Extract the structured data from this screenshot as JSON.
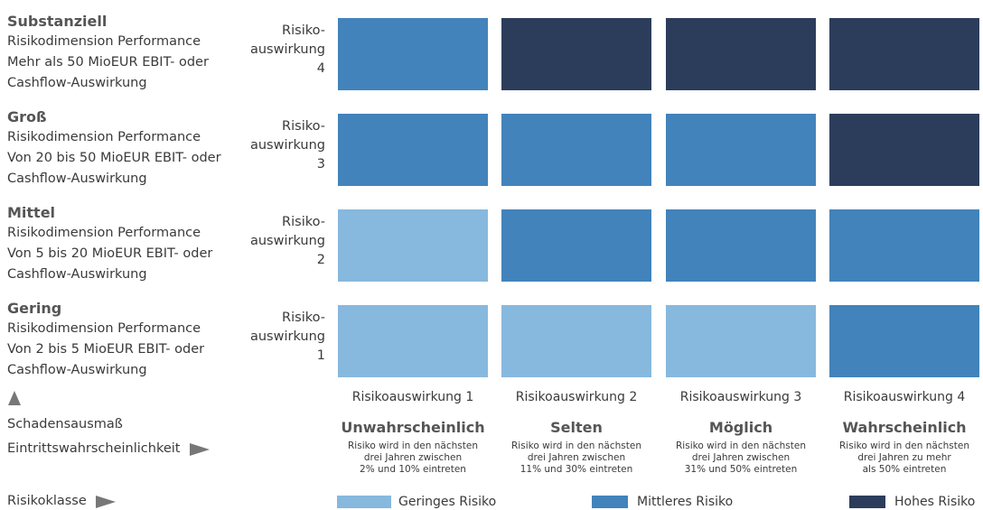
{
  "colors": {
    "low": "#87b8de",
    "medium": "#4283bb",
    "high": "#2c3d5c"
  },
  "rows": [
    {
      "title": "Substanziell",
      "lines": [
        "Risikodimension Performance",
        "Mehr als 50 MioEUR EBIT- oder",
        "Cashflow-Auswirkung"
      ],
      "impact_label": [
        "Risiko-",
        "auswirkung",
        "4"
      ],
      "cells": [
        "medium",
        "high",
        "high",
        "high"
      ]
    },
    {
      "title": "Groß",
      "lines": [
        "Risikodimension Performance",
        "Von 20 bis 50 MioEUR EBIT- oder",
        "Cashflow-Auswirkung"
      ],
      "impact_label": [
        "Risiko-",
        "auswirkung",
        "3"
      ],
      "cells": [
        "medium",
        "medium",
        "medium",
        "high"
      ]
    },
    {
      "title": "Mittel",
      "lines": [
        "Risikodimension Performance",
        "Von 5 bis 20 MioEUR EBIT- oder",
        "Cashflow-Auswirkung"
      ],
      "impact_label": [
        "Risiko-",
        "auswirkung",
        "2"
      ],
      "cells": [
        "low",
        "medium",
        "medium",
        "medium"
      ]
    },
    {
      "title": "Gering",
      "lines": [
        "Risikodimension Performance",
        "Von 2 bis 5 MioEUR EBIT- oder",
        "Cashflow-Auswirkung"
      ],
      "impact_label": [
        "Risiko-",
        "auswirkung",
        "1"
      ],
      "cells": [
        "low",
        "low",
        "low",
        "medium"
      ]
    }
  ],
  "columns": [
    {
      "header": "Risikoauswirkung 1",
      "title": "Unwahrscheinlich",
      "desc": [
        "Risiko wird in den nächsten",
        "drei Jahren zwischen",
        "2% und 10% eintreten"
      ]
    },
    {
      "header": "Risikoauswirkung 2",
      "title": "Selten",
      "desc": [
        "Risiko wird in den nächsten",
        "drei Jahren zwischen",
        "11% und 30% eintreten"
      ]
    },
    {
      "header": "Risikoauswirkung 3",
      "title": "Möglich",
      "desc": [
        "Risiko wird in den nächsten",
        "drei Jahren zwischen",
        "31% und 50% eintreten"
      ]
    },
    {
      "header": "Risikoauswirkung 4",
      "title": "Wahrscheinlich",
      "desc": [
        "Risiko wird in den nächsten",
        "drei Jahren zu mehr",
        "als 50% eintreten"
      ]
    }
  ],
  "axis": {
    "damage": "Schadensausmaß",
    "probability": "Eintrittswahrscheinlichkeit",
    "risk_class": "Risikoklasse"
  },
  "legend": [
    {
      "key": "low",
      "label": "Geringes Risiko"
    },
    {
      "key": "medium",
      "label": "Mittleres Risiko"
    },
    {
      "key": "high",
      "label": "Hohes Risiko"
    }
  ]
}
